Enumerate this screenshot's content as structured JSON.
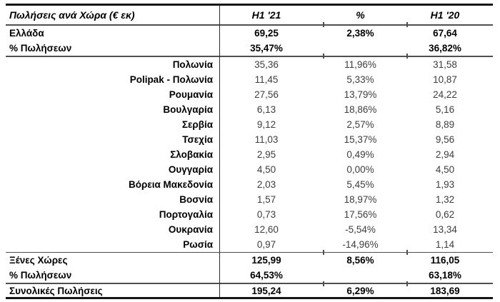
{
  "table": {
    "title": "Πωλήσεις ανά Χώρα (€ εκ)",
    "header": {
      "col_h1_21": "H1 '21",
      "col_pct": "%",
      "col_h1_20": "H1 '20"
    },
    "rows": [
      {
        "type": "total",
        "label": "Ελλάδα",
        "h1_21": "69,25",
        "pct": "2,38%",
        "h1_20": "67,64"
      },
      {
        "type": "total",
        "label": "% Πωλήσεων",
        "h1_21": "35,47%",
        "pct": "",
        "h1_20": "36,82%",
        "sep_after": true
      },
      {
        "type": "country",
        "label": "Πολωνία",
        "h1_21": "35,36",
        "pct": "11,96%",
        "h1_20": "31,58"
      },
      {
        "type": "country",
        "label": "Polipak - Πολωνία",
        "h1_21": "11,45",
        "pct": "5,33%",
        "h1_20": "10,87"
      },
      {
        "type": "country",
        "label": "Ρουμανία",
        "h1_21": "27,56",
        "pct": "13,79%",
        "h1_20": "24,22"
      },
      {
        "type": "country",
        "label": "Βουλγαρία",
        "h1_21": "6,13",
        "pct": "18,86%",
        "h1_20": "5,16"
      },
      {
        "type": "country",
        "label": "Σερβία",
        "h1_21": "9,12",
        "pct": "2,57%",
        "h1_20": "8,89"
      },
      {
        "type": "country",
        "label": "Τσεχία",
        "h1_21": "11,03",
        "pct": "15,37%",
        "h1_20": "9,56"
      },
      {
        "type": "country",
        "label": "Σλοβακία",
        "h1_21": "2,95",
        "pct": "0,49%",
        "h1_20": "2,94"
      },
      {
        "type": "country",
        "label": "Ουγγαρία",
        "h1_21": "4,50",
        "pct": "0,00%",
        "h1_20": "4,50"
      },
      {
        "type": "country",
        "label": "Βόρεια Μακεδονία",
        "h1_21": "2,03",
        "pct": "5,45%",
        "h1_20": "1,93"
      },
      {
        "type": "country",
        "label": "Βοσνία",
        "h1_21": "1,57",
        "pct": "18,97%",
        "h1_20": "1,32"
      },
      {
        "type": "country",
        "label": "Πορτογαλία",
        "h1_21": "0,73",
        "pct": "17,56%",
        "h1_20": "0,62"
      },
      {
        "type": "country",
        "label": "Ουκρανία",
        "h1_21": "12,60",
        "pct": "-5,54%",
        "h1_20": "13,34"
      },
      {
        "type": "country",
        "label": "Ρωσία",
        "h1_21": "0,97",
        "pct": "-14,96%",
        "h1_20": "1,14",
        "sep_after": true
      },
      {
        "type": "total",
        "label": "Ξένες Χώρες",
        "h1_21": "125,99",
        "pct": "8,56%",
        "h1_20": "116,05"
      },
      {
        "type": "total",
        "label": "% Πωλήσεων",
        "h1_21": "64,53%",
        "pct": "",
        "h1_20": "63,18%",
        "sep_after": true
      },
      {
        "type": "total",
        "label": "Συνολικές Πωλήσεις",
        "h1_21": "195,24",
        "pct": "6,29%",
        "h1_20": "183,69"
      }
    ],
    "colors": {
      "thick_border": "#161616",
      "separator": "#4f4f4f",
      "regular_text": "#3d3d3d",
      "bold_text": "#000000"
    }
  }
}
